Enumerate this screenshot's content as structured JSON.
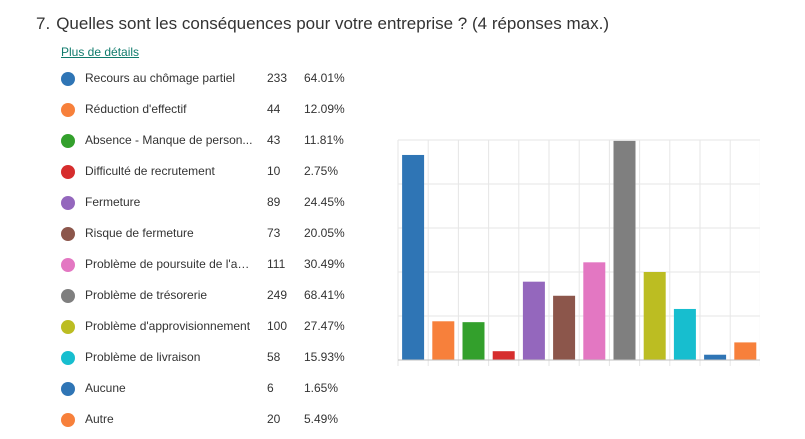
{
  "question": {
    "number": "7.",
    "title": "Quelles sont les conséquences pour votre entreprise ? (4 réponses max.)",
    "details_link": "Plus de détails"
  },
  "options": [
    {
      "label": "Recours au chômage partiel",
      "count": "233",
      "percent": "64.01%",
      "color": "#2f75b5"
    },
    {
      "label": "Réduction d'effectif",
      "count": "44",
      "percent": "12.09%",
      "color": "#f7803b"
    },
    {
      "label": "Absence - Manque de person...",
      "count": "43",
      "percent": "11.81%",
      "color": "#33a02c"
    },
    {
      "label": "Difficulté de recrutement",
      "count": "10",
      "percent": "2.75%",
      "color": "#d62d2d"
    },
    {
      "label": "Fermeture",
      "count": "89",
      "percent": "24.45%",
      "color": "#9467bd"
    },
    {
      "label": "Risque de fermeture",
      "count": "73",
      "percent": "20.05%",
      "color": "#8c564b"
    },
    {
      "label": "Problème de poursuite de l'ac...",
      "count": "111",
      "percent": "30.49%",
      "color": "#e377c2"
    },
    {
      "label": "Problème de trésorerie",
      "count": "249",
      "percent": "68.41%",
      "color": "#7f7f7f"
    },
    {
      "label": "Problème d'approvisionnement",
      "count": "100",
      "percent": "27.47%",
      "color": "#bcbd22"
    },
    {
      "label": "Problème de livraison",
      "count": "58",
      "percent": "15.93%",
      "color": "#17becf"
    },
    {
      "label": "Aucune",
      "count": "6",
      "percent": "1.65%",
      "color": "#2f75b5"
    },
    {
      "label": "Autre",
      "count": "20",
      "percent": "5.49%",
      "color": "#f7803b"
    }
  ],
  "chart_data": {
    "type": "bar",
    "categories": [
      "Recours au chômage partiel",
      "Réduction d'effectif",
      "Absence - Manque de person...",
      "Difficulté de recrutement",
      "Fermeture",
      "Risque de fermeture",
      "Problème de poursuite de l'ac...",
      "Problème de trésorerie",
      "Problème d'approvisionnement",
      "Problème de livraison",
      "Aucune",
      "Autre"
    ],
    "values": [
      233,
      44,
      43,
      10,
      89,
      73,
      111,
      249,
      100,
      58,
      6,
      20
    ],
    "colors": [
      "#2f75b5",
      "#f7803b",
      "#33a02c",
      "#d62d2d",
      "#9467bd",
      "#8c564b",
      "#e377c2",
      "#7f7f7f",
      "#bcbd22",
      "#17becf",
      "#2f75b5",
      "#f7803b"
    ],
    "ylim": [
      0,
      250
    ],
    "grid": true
  }
}
